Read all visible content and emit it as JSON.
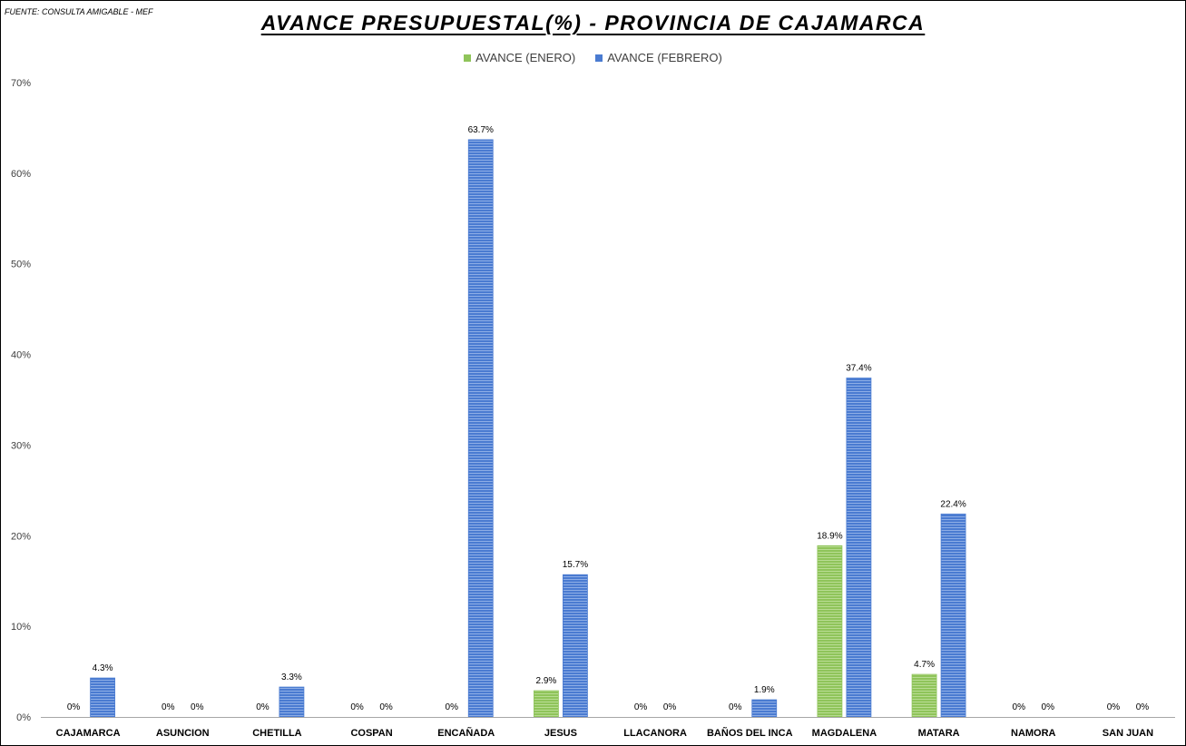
{
  "source_note": "FUENTE: CONSULTA AMIGABLE - MEF",
  "colors": {
    "enero": "#8fc45a",
    "febrero": "#4a7bd1"
  },
  "chart_data": {
    "type": "bar",
    "title": "AVANCE PRESUPUESTAL(%) - PROVINCIA DE CAJAMARCA",
    "xlabel": "",
    "ylabel": "",
    "ylim": [
      0,
      70
    ],
    "yticks": [
      0,
      10,
      20,
      30,
      40,
      50,
      60,
      70
    ],
    "ytick_labels": [
      "0%",
      "10%",
      "20%",
      "30%",
      "40%",
      "50%",
      "60%",
      "70%"
    ],
    "grid": false,
    "legend_position": "top-center",
    "categories": [
      "CAJAMARCA",
      "ASUNCION",
      "CHETILLA",
      "COSPAN",
      "ENCAÑADA",
      "JESUS",
      "LLACANORA",
      "BAÑOS DEL INCA",
      "MAGDALENA",
      "MATARA",
      "NAMORA",
      "SAN JUAN"
    ],
    "series": [
      {
        "name": "AVANCE (ENERO)",
        "values": [
          0,
          0,
          0,
          0,
          0,
          2.9,
          0,
          0,
          18.9,
          4.7,
          0,
          0
        ],
        "labels": [
          "0%",
          "0%",
          "0%",
          "0%",
          "0%",
          "2.9%",
          "0%",
          "0%",
          "18.9%",
          "4.7%",
          "0%",
          "0%"
        ]
      },
      {
        "name": "AVANCE (FEBRERO)",
        "values": [
          4.3,
          0,
          3.3,
          0,
          63.7,
          15.7,
          0,
          1.9,
          37.4,
          22.4,
          0,
          0
        ],
        "labels": [
          "4.3%",
          "0%",
          "3.3%",
          "0%",
          "63.7%",
          "15.7%",
          "0%",
          "1.9%",
          "37.4%",
          "22.4%",
          "0%",
          "0%"
        ]
      }
    ]
  }
}
